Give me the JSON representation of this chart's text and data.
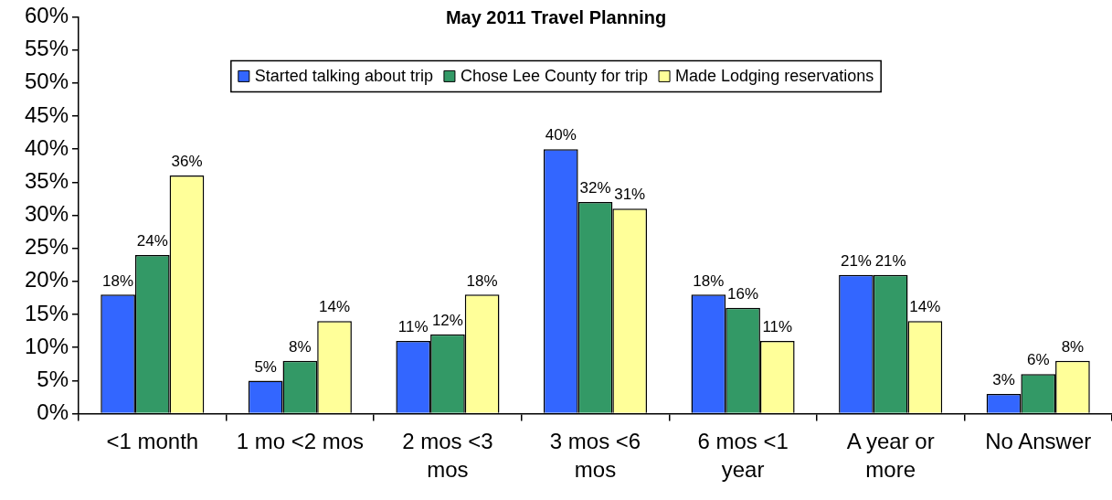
{
  "chart_data": {
    "type": "bar",
    "title": "May 2011 Travel Planning",
    "categories": [
      "<1 month",
      "1 mo <2 mos",
      "2 mos <3 mos",
      "3 mos <6 mos",
      "6 mos <1 year",
      "A year or more",
      "No Answer"
    ],
    "series": [
      {
        "name": "Started talking about trip",
        "color": "#3366ff",
        "values": [
          18,
          5,
          11,
          40,
          18,
          21,
          3
        ],
        "value_labels": [
          "18%",
          "5%",
          "11%",
          "40%",
          "18%",
          "21%",
          "3%"
        ]
      },
      {
        "name": "Chose Lee County for trip",
        "color": "#339966",
        "values": [
          24,
          8,
          12,
          32,
          16,
          21,
          6
        ],
        "value_labels": [
          "24%",
          "8%",
          "12%",
          "32%",
          "16%",
          "21%",
          "6%"
        ]
      },
      {
        "name": "Made Lodging reservations",
        "color": "#ffff99",
        "values": [
          36,
          14,
          18,
          31,
          11,
          14,
          8
        ],
        "value_labels": [
          "36%",
          "14%",
          "18%",
          "31%",
          "11%",
          "14%",
          "8%"
        ]
      }
    ],
    "ylim": [
      0,
      60
    ],
    "yticks": [
      {
        "value": 0,
        "label": "0%"
      },
      {
        "value": 5,
        "label": "5%"
      },
      {
        "value": 10,
        "label": "10%"
      },
      {
        "value": 15,
        "label": "15%"
      },
      {
        "value": 20,
        "label": "20%"
      },
      {
        "value": 25,
        "label": "25%"
      },
      {
        "value": 30,
        "label": "30%"
      },
      {
        "value": 35,
        "label": "35%"
      },
      {
        "value": 40,
        "label": "40%"
      },
      {
        "value": 45,
        "label": "45%"
      },
      {
        "value": 50,
        "label": "50%"
      },
      {
        "value": 55,
        "label": "55%"
      },
      {
        "value": 60,
        "label": "60%"
      }
    ],
    "grid": false,
    "legend": "top"
  }
}
